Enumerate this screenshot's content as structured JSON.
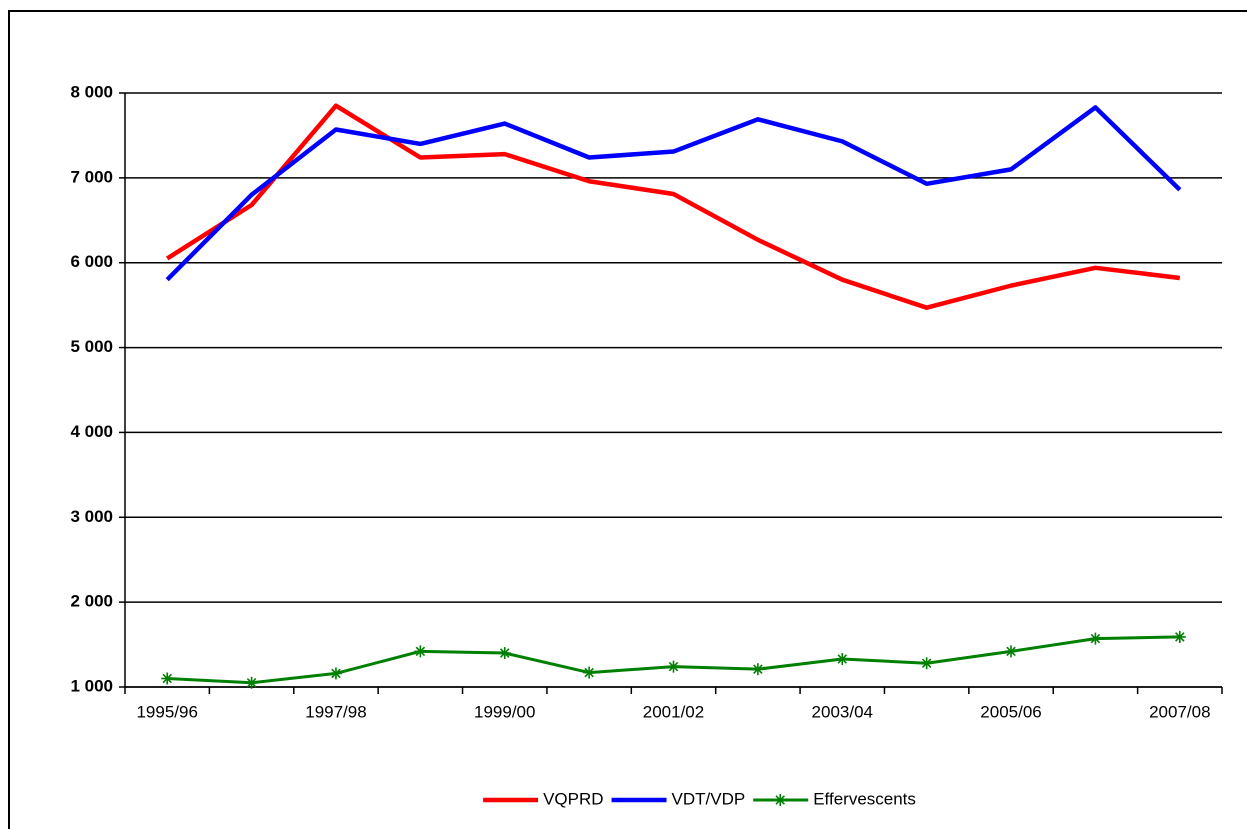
{
  "chart_data": {
    "type": "line",
    "categories": [
      "1995/96",
      null,
      "1997/98",
      null,
      "1999/00",
      null,
      "2001/02",
      null,
      "2003/04",
      null,
      "2005/06",
      null,
      "2007/08"
    ],
    "series": [
      {
        "name": "VQPRD",
        "color": "#ff0000",
        "values": [
          6050,
          6680,
          7850,
          7240,
          7280,
          6960,
          6810,
          6270,
          5800,
          5470,
          5730,
          5940,
          5820
        ]
      },
      {
        "name": "VDT/VDP",
        "color": "#0000ff",
        "values": [
          5800,
          6800,
          7570,
          7400,
          7640,
          7240,
          7310,
          7690,
          7430,
          6930,
          7100,
          7830,
          6860
        ]
      },
      {
        "name": "Effervescents",
        "color": "#008000",
        "marker": "star",
        "values": [
          1100,
          1050,
          1160,
          1420,
          1400,
          1170,
          1240,
          1210,
          1330,
          1280,
          1420,
          1570,
          1590
        ]
      }
    ],
    "ylim": [
      1000,
      8000
    ],
    "yticks": [
      {
        "value": 1000,
        "label": "1 000"
      },
      {
        "value": 2000,
        "label": "2 000"
      },
      {
        "value": 3000,
        "label": "3 000"
      },
      {
        "value": 4000,
        "label": "4 000"
      },
      {
        "value": 5000,
        "label": "5 000"
      },
      {
        "value": 6000,
        "label": "6 000"
      },
      {
        "value": 7000,
        "label": "7 000"
      },
      {
        "value": 8000,
        "label": "8 000"
      }
    ],
    "grid": true,
    "legend": "bottom"
  }
}
